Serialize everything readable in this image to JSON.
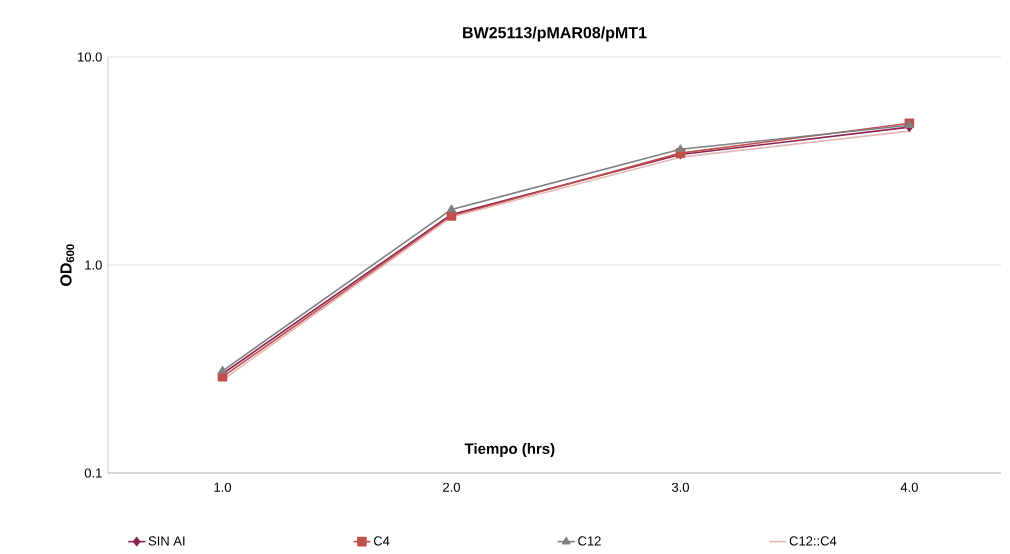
{
  "chart_data": {
    "type": "line",
    "title": "BW25113/pMAR08/pMT1",
    "xlabel": "Tiempo (hrs)",
    "ylabel": "OD$_{600}$",
    "x": [
      1,
      2,
      3,
      4
    ],
    "series": [
      {
        "name": "SIN AI",
        "color": "#8b2252",
        "marker": "diamond",
        "values": [
          0.3,
          1.75,
          3.4,
          4.6
        ]
      },
      {
        "name": "C4",
        "color": "#c0504d",
        "marker": "square",
        "values": [
          0.29,
          1.72,
          3.45,
          4.8
        ]
      },
      {
        "name": "C12",
        "color": "#808080",
        "marker": "triangle",
        "values": [
          0.31,
          1.85,
          3.6,
          4.7
        ]
      },
      {
        "name": "C12::C4",
        "color": "#e6b9b8",
        "marker": "none",
        "values": [
          0.28,
          1.7,
          3.3,
          4.4
        ]
      }
    ],
    "log": "y",
    "xlim": [
      0.5,
      4.4
    ],
    "ylim": [
      0.1,
      10
    ],
    "xticks": [
      {
        "value": 1,
        "label": "1.0"
      },
      {
        "value": 2,
        "label": "2.0"
      },
      {
        "value": 3,
        "label": "3.0"
      },
      {
        "value": 4,
        "label": "4.0"
      }
    ],
    "yticks": [
      {
        "value": 0.1,
        "label": "0.1"
      },
      {
        "value": 1,
        "label": "1.0"
      },
      {
        "value": 10,
        "label": "10.0"
      }
    ],
    "grid": "y",
    "legend": "bottom",
    "line_style": "solid"
  }
}
